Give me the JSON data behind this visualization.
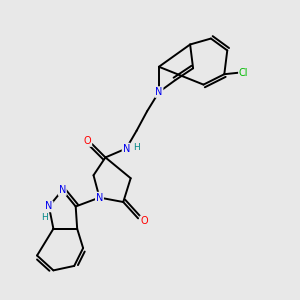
{
  "background_color": "#e8e8e8",
  "bond_color": "#000000",
  "atom_colors": {
    "N": "#0000ee",
    "O": "#ff0000",
    "Cl": "#00bb00",
    "H": "#008888",
    "C": "#000000"
  },
  "figsize": [
    3.0,
    3.0
  ],
  "dpi": 100,
  "lw": 1.4,
  "fs": 7.0
}
